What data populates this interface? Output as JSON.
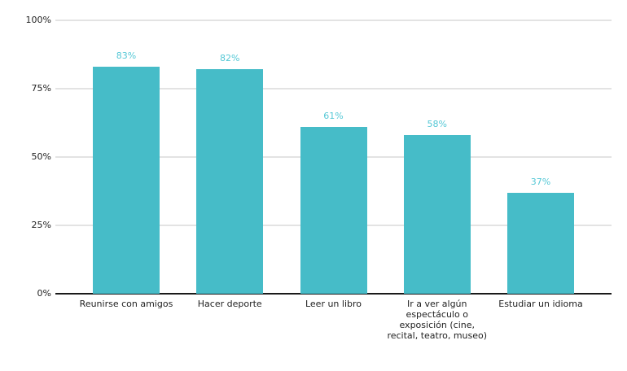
{
  "chart_data": {
    "type": "bar",
    "categories": [
      "Reunirse con amigos",
      "Hacer deporte",
      "Leer un libro",
      "Ir a ver algún espectáculo o exposición (cine, recital, teatro, museo)",
      "Estudiar un idioma"
    ],
    "values": [
      83,
      82,
      61,
      58,
      37
    ],
    "value_labels": [
      "83%",
      "82%",
      "61%",
      "58%",
      "37%"
    ],
    "y_ticks": [
      {
        "label": "0%",
        "value": 0
      },
      {
        "label": "25%",
        "value": 25
      },
      {
        "label": "50%",
        "value": 50
      },
      {
        "label": "75%",
        "value": 75
      },
      {
        "label": "100%",
        "value": 100
      }
    ],
    "ylim": [
      0,
      100
    ],
    "grid": true,
    "legend": "none",
    "colors": {
      "bar_fill": "#46bcc8",
      "value_label": "#55c8d6",
      "axis_text": "#222222",
      "gridline": "#e3e3e3",
      "axis_line": "#1a1a1a",
      "background": "#ffffff"
    }
  }
}
